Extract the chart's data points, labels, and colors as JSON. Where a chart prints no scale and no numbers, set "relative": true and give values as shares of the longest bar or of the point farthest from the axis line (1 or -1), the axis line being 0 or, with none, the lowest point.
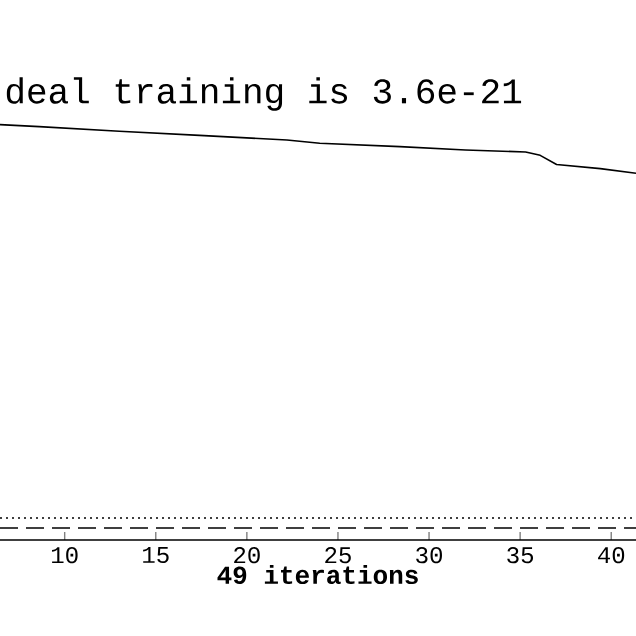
{
  "chart_data": {
    "type": "line",
    "title": "deal training is 3.6e-21",
    "xlabel": "**49 iterations**",
    "relative": true,
    "xlim": [
      6.45,
      41.36
    ],
    "xticks": [
      10,
      15,
      20,
      25,
      30,
      35,
      40
    ],
    "series": [
      {
        "color": "#000000",
        "line_style": "solid",
        "x": [
          6.45,
          8.6,
          13.0,
          15.2,
          17.4,
          22.2,
          24.0,
          28.4,
          32.0,
          35.3,
          36.1,
          37.0,
          39.4,
          41.36
        ],
        "values": [
          1,
          0.995,
          0.984,
          0.979,
          0.974,
          0.963,
          0.955,
          0.947,
          0.939,
          0.934,
          0.926,
          0.904,
          0.894,
          0.883
        ]
      },
      {
        "color": "#000000",
        "line_style": "dotted",
        "x": [
          6.45,
          41.36
        ],
        "values": [
          0.053,
          0.053
        ]
      },
      {
        "color": "#000000",
        "line_style": "dashed",
        "x": [
          6.45,
          41.36
        ],
        "values": [
          0.029,
          0.029
        ]
      }
    ]
  }
}
